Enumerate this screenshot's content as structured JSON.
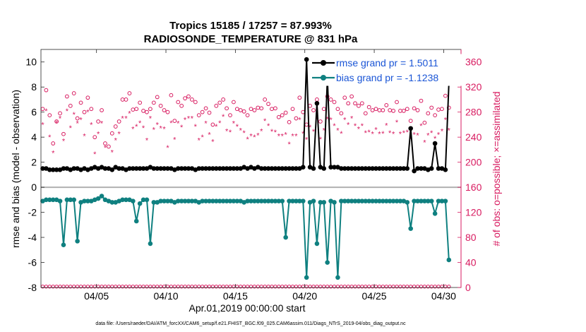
{
  "chart_data": {
    "type": "line",
    "title_line1": "Tropics 15185 / 17257 = 87.993%",
    "title_line2": "RADIOSONDE_TEMPERATURE @ 831 hPa",
    "xlabel": "Apr.01,2019 00:00:00 start",
    "ylabel": "rmse and bias (model - observation)",
    "ylabel_right": "# of obs: o=possible; ×=assimilated",
    "footnote": "data file: /Users/raeder/DAI/ATM_forcXX/CAM6_setup/f.e21.FHIST_BGC.f09_025.CAM6assim.011/Diags_NTrS_2019-04/obs_diag_output.nc",
    "xlim": [
      1,
      31.25
    ],
    "ylim": [
      -8,
      11
    ],
    "ylim_right": [
      0,
      380
    ],
    "x_ticks": [
      5,
      10,
      15,
      20,
      25,
      30
    ],
    "x_tick_labels": [
      "04/05",
      "04/10",
      "04/15",
      "04/20",
      "04/25",
      "04/30"
    ],
    "y_ticks": [
      -8,
      -6,
      -4,
      -2,
      0,
      2,
      4,
      6,
      8,
      10
    ],
    "y_tick_labels": [
      "-8",
      "-6",
      "-4",
      "-2",
      "0",
      "2",
      "4",
      "6",
      "8",
      "10"
    ],
    "y_ticks_right": [
      0,
      40,
      80,
      120,
      160,
      200,
      240,
      280,
      320,
      360
    ],
    "y_tick_labels_right": [
      "0",
      "40",
      "80",
      "120",
      "160",
      "200",
      "240",
      "280",
      "320",
      "360"
    ],
    "colors": {
      "rmse": "#000000",
      "bias": "#0f8080",
      "obs": "#d81b60",
      "zero": "#b0b0b0",
      "legend_text": "#1a55d6"
    },
    "series": [
      {
        "name": "rmse grand pr = 1.5011",
        "values": [
          1.5,
          1.5,
          1.4,
          1.4,
          1.4,
          1.4,
          1.5,
          1.5,
          1.4,
          1.5,
          1.5,
          1.4,
          1.5,
          1.4,
          1.5,
          1.6,
          1.5,
          1.6,
          1.5,
          1.5,
          1.4,
          1.6,
          1.5,
          1.5,
          1.4,
          1.5,
          1.5,
          1.5,
          1.5,
          1.5,
          1.5,
          1.6,
          1.5,
          1.5,
          1.5,
          1.5,
          1.5,
          1.5,
          1.4,
          1.5,
          1.5,
          1.5,
          1.5,
          1.5,
          1.4,
          1.5,
          1.5,
          1.5,
          1.5,
          1.5,
          1.5,
          1.5,
          1.5,
          1.5,
          1.5,
          1.5,
          1.5,
          1.5,
          1.6,
          1.5,
          1.6,
          1.5,
          1.6,
          1.5,
          1.5,
          1.5,
          1.5,
          1.5,
          1.5,
          1.5,
          1.5,
          1.5,
          1.5,
          1.5,
          1.5,
          1.6,
          10.2,
          1.6,
          1.5,
          6.7,
          1.6,
          1.5,
          8.7,
          1.6,
          1.6,
          1.6,
          1.5,
          1.5,
          1.5,
          1.5,
          1.5,
          1.5,
          1.5,
          1.5,
          1.5,
          1.5,
          1.5,
          1.5,
          1.5,
          1.5,
          1.5,
          1.5,
          1.5,
          1.5,
          1.5,
          1.5,
          4.7,
          1.3,
          1.5,
          1.5,
          1.5,
          1.4,
          1.5,
          3.5,
          1.5,
          1.5,
          1.4,
          8.3
        ]
      },
      {
        "name": "bias grand pr = -1.1238",
        "values": [
          -1.1,
          -1.0,
          -1.0,
          -1.0,
          -1.0,
          -1.1,
          -4.6,
          -1.0,
          -1.0,
          -1.0,
          -4.3,
          -1.2,
          -1.1,
          -1.1,
          -1.1,
          -1.0,
          -0.9,
          -0.7,
          -1.0,
          -1.1,
          -1.2,
          -1.2,
          -1.1,
          -1.0,
          -1.0,
          -1.0,
          -1.1,
          -2.7,
          -1.3,
          -1.0,
          -1.0,
          -4.5,
          -1.2,
          -1.2,
          -1.1,
          -1.1,
          -1.1,
          -1.1,
          -1.2,
          -1.1,
          -1.1,
          -1.1,
          -1.1,
          -1.1,
          -1.1,
          -1.2,
          -1.1,
          -1.1,
          -1.1,
          -1.1,
          -1.1,
          -1.1,
          -1.1,
          -1.1,
          -1.1,
          -1.1,
          -1.1,
          -1.1,
          -1.2,
          -1.1,
          -1.1,
          -1.1,
          -1.1,
          -1.1,
          -1.1,
          -1.1,
          -1.1,
          -1.1,
          -1.1,
          -1.1,
          -4.0,
          -1.1,
          -1.1,
          -1.1,
          -1.1,
          -1.1,
          -7.2,
          -1.2,
          -1.1,
          -4.5,
          -1.2,
          -1.2,
          -6.0,
          -1.1,
          -1.2,
          -7.2,
          -1.1,
          -1.1,
          -1.1,
          -1.1,
          -1.1,
          -1.1,
          -1.1,
          -1.1,
          -1.1,
          -1.1,
          -1.1,
          -1.1,
          -1.1,
          -1.1,
          -1.1,
          -1.1,
          -1.1,
          -1.1,
          -1.1,
          -1.2,
          -3.3,
          -1.1,
          -1.1,
          -1.1,
          -1.1,
          -1.1,
          -1.1,
          -2.1,
          -1.1,
          -1.1,
          -1.1,
          -5.8
        ]
      },
      {
        "name": "possible",
        "values": [
          285,
          315,
          275,
          230,
          265,
          278,
          245,
          305,
          290,
          310,
          270,
          295,
          280,
          303,
          285,
          240,
          265,
          283,
          230,
          225,
          246,
          257,
          265,
          300,
          300,
          310,
          284,
          285,
          295,
          282,
          280,
          285,
          295,
          304,
          290,
          283,
          280,
          307,
          266,
          296,
          290,
          302,
          305,
          300,
          296,
          275,
          280,
          286,
          279,
          260,
          290,
          295,
          300,
          286,
          275,
          296,
          285,
          283,
          281,
          275,
          285,
          283,
          287,
          286,
          300,
          293,
          285,
          286,
          272,
          275,
          279,
          264,
          285,
          270,
          303,
          280,
          260,
          290,
          283,
          300,
          265,
          285,
          305,
          300,
          296,
          285,
          278,
          303,
          294,
          305,
          294,
          290,
          294,
          278,
          288,
          283,
          285,
          283,
          283,
          291,
          283,
          282,
          296,
          282,
          282,
          285,
          266,
          286,
          283,
          298,
          263,
          278,
          287,
          275,
          284,
          285,
          306,
          287
        ]
      },
      {
        "name": "assimilated",
        "values": [
          260,
          282,
          240,
          215,
          263,
          270,
          234,
          282,
          255,
          276,
          262,
          268,
          242,
          280,
          260,
          213,
          245,
          262,
          223,
          190,
          216,
          235,
          245,
          270,
          270,
          278,
          253,
          257,
          263,
          255,
          235,
          270,
          252,
          260,
          254,
          253,
          223,
          263,
          236,
          262,
          256,
          268,
          270,
          270,
          257,
          235,
          240,
          262,
          244,
          233,
          257,
          263,
          273,
          250,
          248,
          262,
          257,
          251,
          247,
          237,
          242,
          240,
          243,
          250,
          266,
          258,
          249,
          248,
          242,
          242,
          244,
          229,
          242,
          242,
          268,
          246,
          236,
          256,
          249,
          268,
          237,
          251,
          269,
          268,
          258,
          251,
          246,
          268,
          260,
          270,
          258,
          253,
          258,
          247,
          248,
          245,
          252,
          245,
          246,
          259,
          247,
          245,
          264,
          245,
          247,
          248,
          236,
          244,
          243,
          258,
          232,
          243,
          247,
          238,
          244,
          250,
          268,
          251
        ]
      }
    ]
  }
}
